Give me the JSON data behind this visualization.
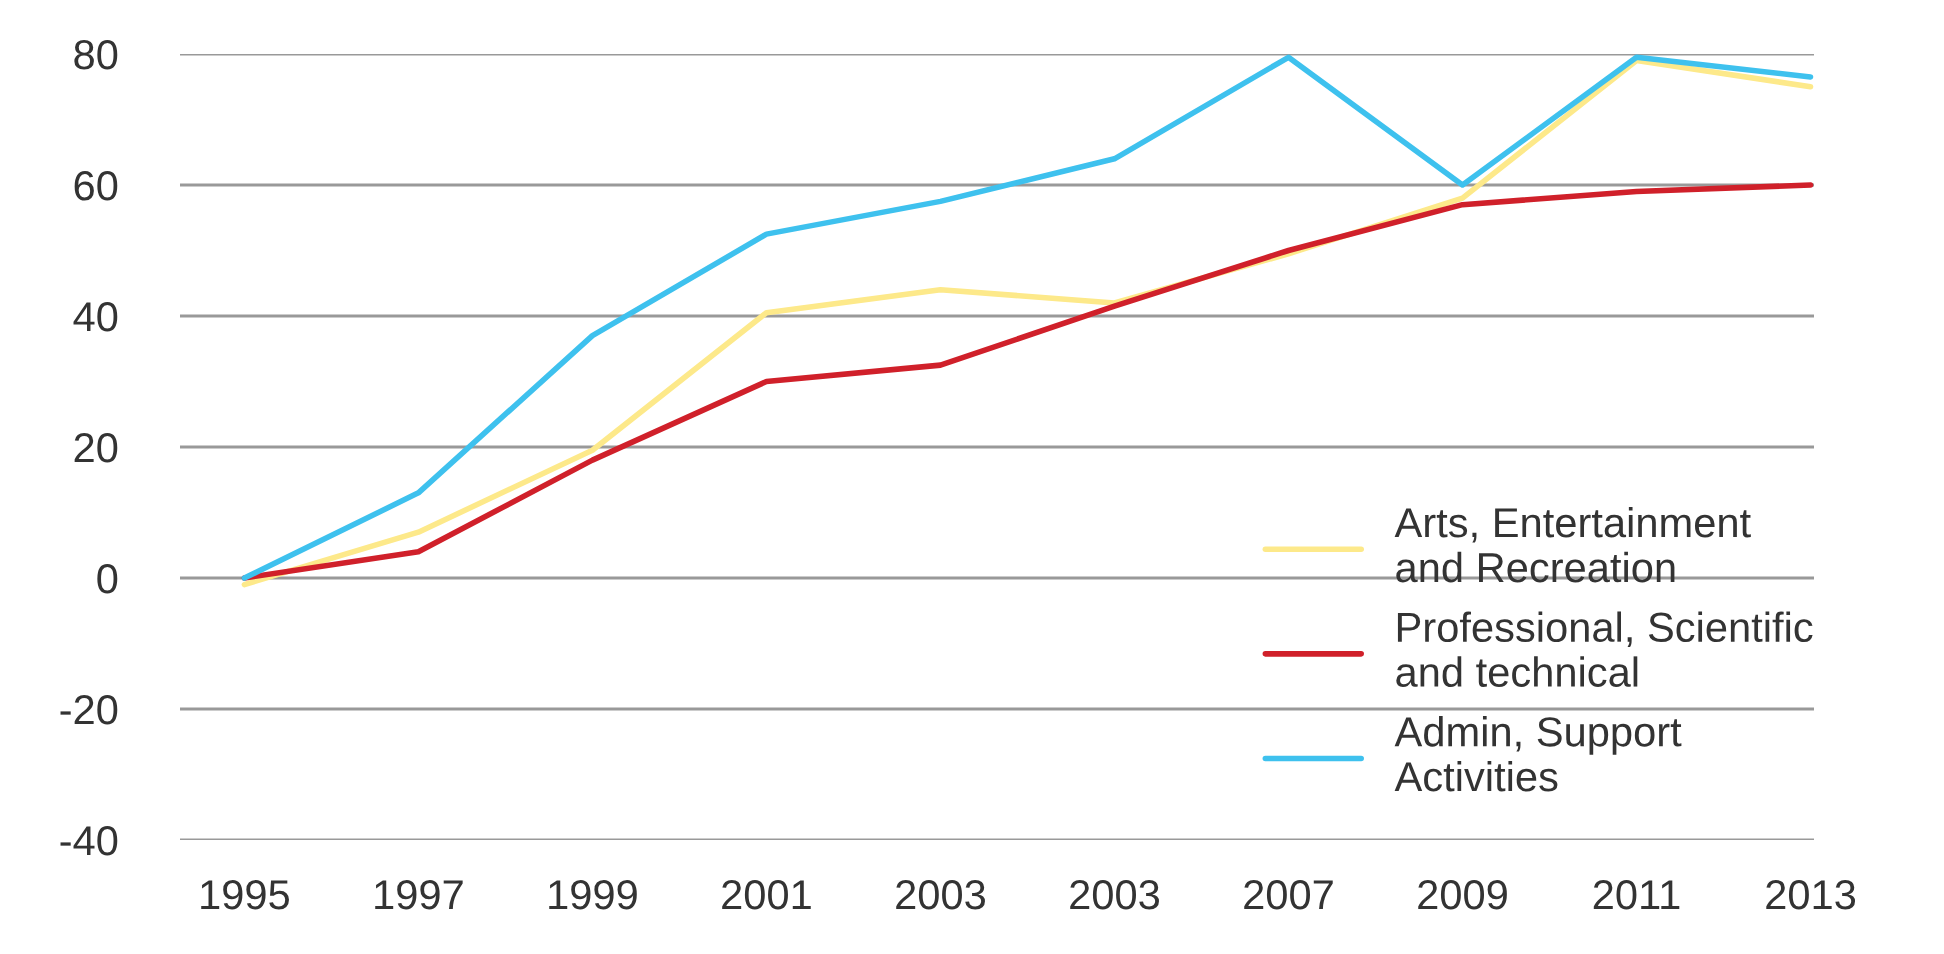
{
  "chart_data": {
    "type": "line",
    "categories": [
      "1995",
      "1997",
      "1999",
      "2001",
      "2003",
      "2003",
      "2007",
      "2009",
      "2011",
      "2013"
    ],
    "series": [
      {
        "name": "Arts, Entertainment\nand Recreation",
        "color": "#fde98a",
        "values": [
          -1,
          7,
          19.5,
          40.5,
          44,
          42,
          49.5,
          58,
          79,
          75
        ]
      },
      {
        "name": "Professional, Scientific\nand technical",
        "color": "#d0202a",
        "values": [
          0,
          4,
          18,
          30,
          32.5,
          41.5,
          50,
          57,
          59,
          60
        ]
      },
      {
        "name": "Admin, Support\nActivities",
        "color": "#3ec1ee",
        "values": [
          0,
          13,
          37,
          52.5,
          57.5,
          64,
          79.5,
          60,
          79.5,
          76.5
        ]
      }
    ],
    "ylim": [
      -40,
      80
    ],
    "yticks": [
      -40,
      -20,
      0,
      20,
      40,
      60,
      80
    ],
    "grid": "y",
    "legend": "bottom right",
    "marker": "none",
    "line_style": "solid"
  }
}
